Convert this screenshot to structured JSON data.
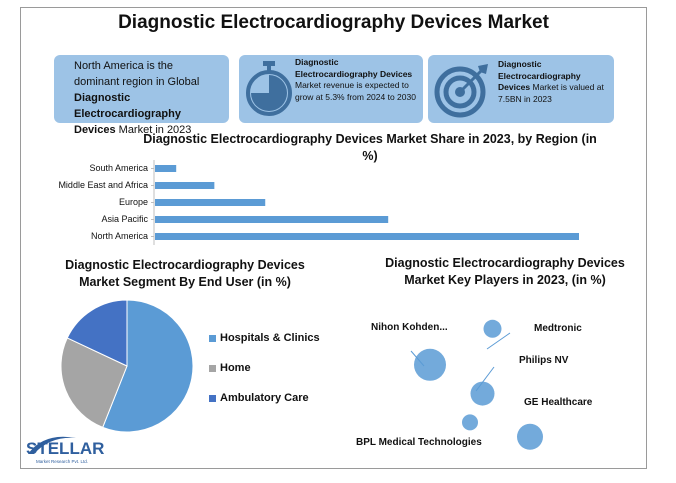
{
  "title": "Diagnostic Electrocardiography Devices Market",
  "cards": [
    {
      "prefix": "North America is the dominant region in Global ",
      "bold": "Diagnostic Electrocardiography Devices",
      "suffix": " Market in 2023",
      "icon": "none"
    },
    {
      "bold": "Diagnostic Electrocardiography Devices",
      "suffix": " Market revenue is expected to grow at 5.3% from 2024 to 2030",
      "icon": "stopwatch-icon"
    },
    {
      "bold": "Diagnostic Electrocardiography Devices",
      "suffix": " Market is valued at  7.5BN in 2023",
      "icon": "target-icon"
    }
  ],
  "colors": {
    "accent": "#5b9bd5",
    "card": "#9dc3e6",
    "pie_home": "#a5a5a5",
    "pie_ambulatory": "#4472c4"
  },
  "chart_data": [
    {
      "type": "bar",
      "orientation": "horizontal",
      "title": "Diagnostic Electrocardiography Devices Market Share in 2023, by Region (in %)",
      "categories": [
        "South America",
        "Middle East and Africa",
        "Europe",
        "Asia Pacific",
        "North America"
      ],
      "values": [
        5,
        14,
        26,
        55,
        100
      ],
      "xlim": [
        0,
        100
      ]
    },
    {
      "type": "pie",
      "title": "Diagnostic Electrocardiography Devices Market Segment By  End User (in %)",
      "labels": [
        "Hospitals & Clinics",
        "Home",
        "Ambulatory Care"
      ],
      "values": [
        56,
        26,
        18
      ],
      "legend": "right"
    },
    {
      "type": "scatter",
      "title": "Diagnostic Electrocardiography Devices Market Key Players in 2023, (in %)",
      "points": [
        {
          "label": "Nihon Kohden...",
          "x": 2,
          "y": 3.2,
          "size": 16
        },
        {
          "label": "Medtronic",
          "x": 4.5,
          "y": 4.2,
          "size": 9
        },
        {
          "label": "Philips NV",
          "x": 4.1,
          "y": 2.4,
          "size": 12
        },
        {
          "label": "BPL Medical Technologies",
          "x": 3.6,
          "y": 1.6,
          "size": 8
        },
        {
          "label": "GE Healthcare",
          "x": 6,
          "y": 1.2,
          "size": 13
        }
      ]
    }
  ],
  "logo": {
    "name": "STELLAR",
    "tagline": "Market Research Pvt. Ltd."
  }
}
